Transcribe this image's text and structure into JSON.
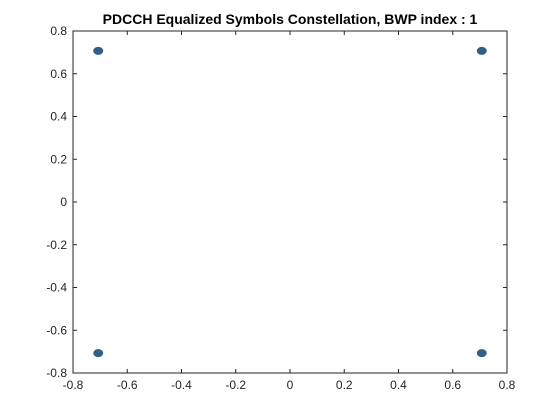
{
  "chart_data": {
    "type": "scatter",
    "title": "PDCCH Equalized Symbols Constellation, BWP index : 1",
    "xlabel": "",
    "ylabel": "",
    "xlim": [
      -0.8,
      0.8
    ],
    "ylim": [
      -0.8,
      0.8
    ],
    "x_ticks": [
      -0.8,
      -0.6,
      -0.4,
      -0.2,
      0,
      0.2,
      0.4,
      0.6,
      0.8
    ],
    "y_ticks": [
      -0.8,
      -0.6,
      -0.4,
      -0.2,
      0,
      0.2,
      0.4,
      0.6,
      0.8
    ],
    "x_tick_labels": [
      "-0.8",
      "-0.6",
      "-0.4",
      "-0.2",
      "0",
      "0.2",
      "0.4",
      "0.6",
      "0.8"
    ],
    "y_tick_labels": [
      "-0.8",
      "-0.6",
      "-0.4",
      "-0.2",
      "0",
      "0.2",
      "0.4",
      "0.6",
      "0.8"
    ],
    "grid": false,
    "marker_color": "#2f5f8a",
    "series": [
      {
        "points": [
          {
            "x": -0.707,
            "y": 0.707
          },
          {
            "x": 0.707,
            "y": 0.707
          },
          {
            "x": -0.707,
            "y": -0.707
          },
          {
            "x": 0.707,
            "y": -0.707
          }
        ]
      }
    ]
  }
}
